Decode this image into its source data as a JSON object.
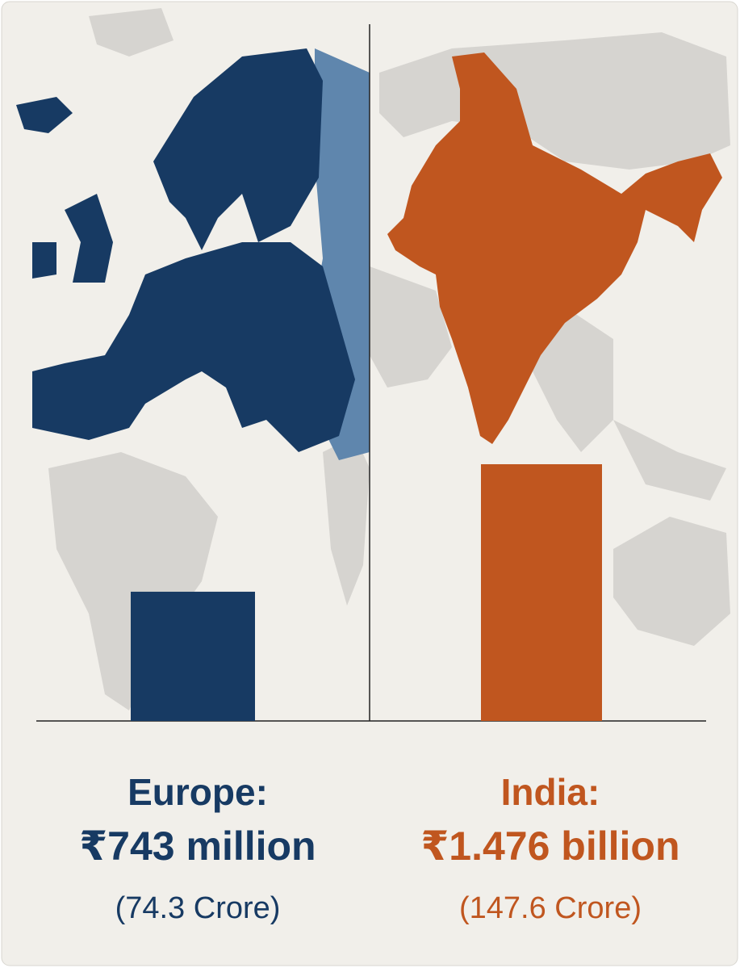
{
  "chart_data": {
    "type": "bar",
    "categories": [
      "Europe:",
      "India:"
    ],
    "values": [
      743,
      1476
    ],
    "value_labels": [
      "₹743 million",
      "₹1.476 billion"
    ],
    "secondary_labels": [
      "(74.3 Crore)",
      "(147.6 Crore)"
    ],
    "colors": [
      "#173a63",
      "#c0561f"
    ]
  }
}
